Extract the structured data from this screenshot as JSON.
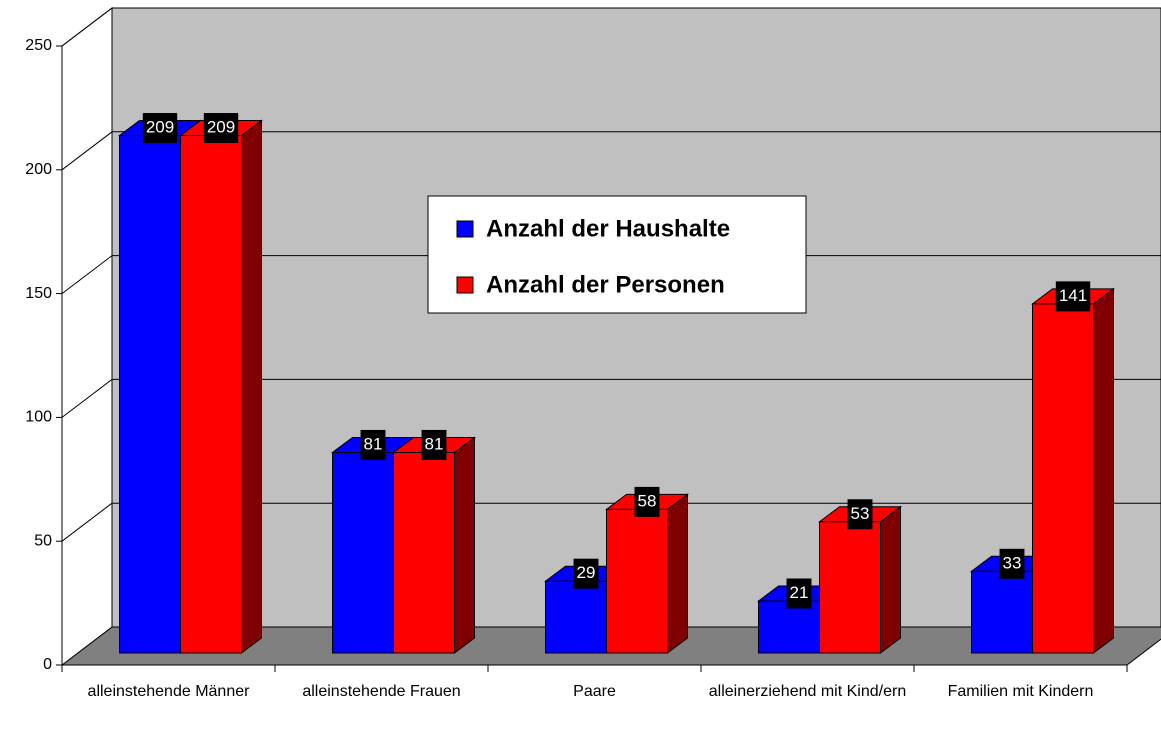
{
  "chart_data": {
    "type": "bar3d",
    "categories": [
      "alleinstehende Männer",
      "alleinstehende Frauen",
      "Paare",
      "alleinerziehend mit Kind/ern",
      "Familien mit Kindern"
    ],
    "series": [
      {
        "name": "Anzahl der Haushalte",
        "color": "#0000ff",
        "values": [
          209,
          81,
          29,
          21,
          33
        ]
      },
      {
        "name": "Anzahl der Personen",
        "color": "#ff0000",
        "values": [
          209,
          81,
          58,
          53,
          141
        ]
      }
    ],
    "ylim": [
      0,
      250
    ],
    "yticks": [
      0,
      50,
      100,
      150,
      200,
      250
    ],
    "grid": true,
    "legend": "center"
  }
}
